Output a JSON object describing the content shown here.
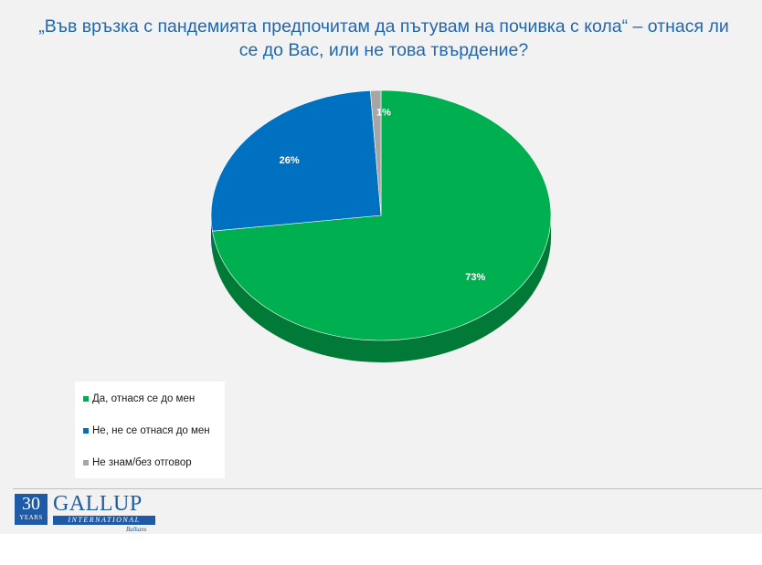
{
  "title": "„Във връзка с пандемията предпочитам да пътувам на почивка с кола“ – отнася ли се до Вас, или не това твърдение?",
  "chart_data": {
    "type": "pie",
    "style": "3d",
    "title": "„Във връзка с пандемията предпочитам да пътувам на почивка с кола“ – отнася ли се до Вас, или не това твърдение?",
    "categories": [
      "Да, отнася се до мен",
      "Не, не се отнася до мен",
      "Не знам/без отговор"
    ],
    "values": [
      73,
      26,
      1
    ],
    "labels": [
      "73%",
      "26%",
      "1%"
    ],
    "colors": [
      "#00b050",
      "#0070c0",
      "#a6a6a6"
    ],
    "side_colors": [
      "#007a36",
      "#004f87",
      "#747474"
    ],
    "legend_position": "bottom-left"
  },
  "legend": {
    "items": [
      {
        "label": "Да, отнася се до мен",
        "color": "#00b050"
      },
      {
        "label": "Не, не се отнася до мен",
        "color": "#0070c0"
      },
      {
        "label": "Не знам/без отговор",
        "color": "#a6a6a6"
      }
    ]
  },
  "logo": {
    "years_number": "30",
    "years_text": "YEARS",
    "brand": "GALLUP",
    "subbrand": "INTERNATIONAL",
    "region": "Balkans"
  }
}
